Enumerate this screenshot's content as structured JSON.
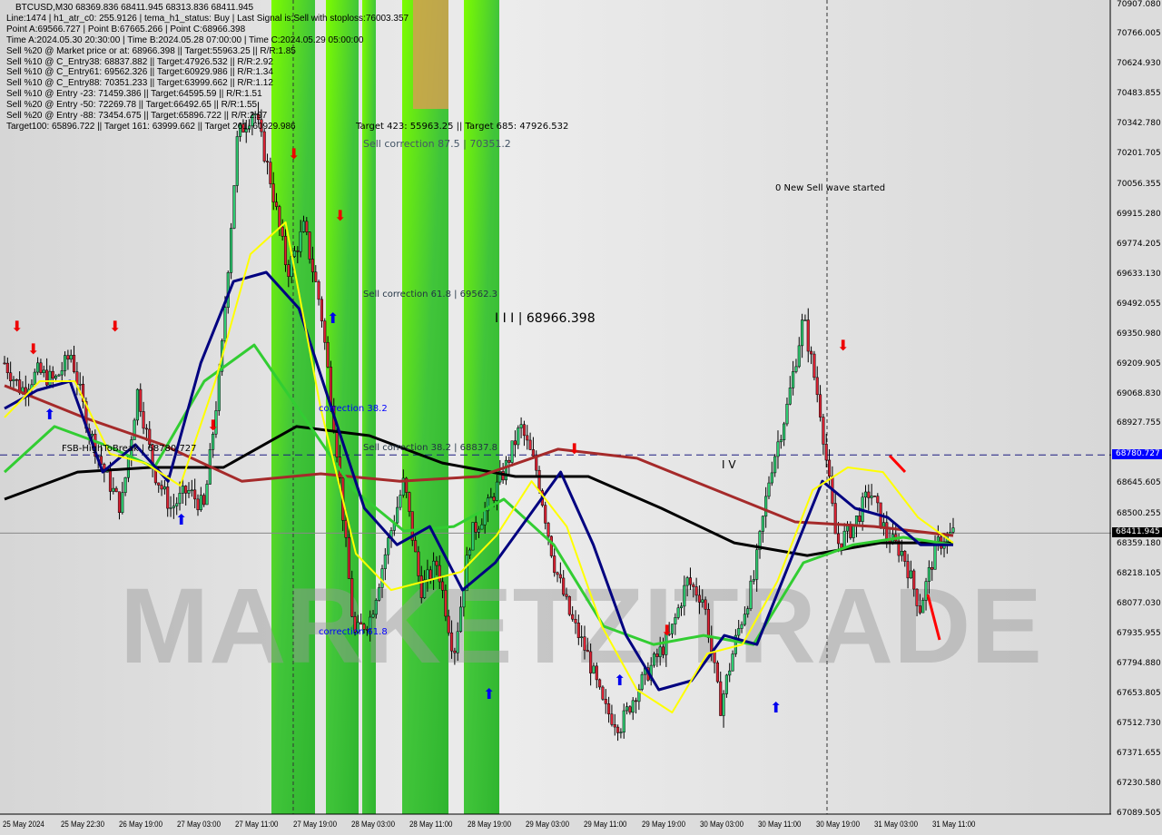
{
  "header": {
    "title": "BTCUSD,M30  68369.836 68411.945 68313.836 68411.945",
    "lines": [
      "Line:1474 | h1_atr_c0: 255.9126 | tema_h1_status: Buy | Last Signal is:Sell with stoploss:76003.357",
      "Point A:69566.727 | Point B:67665.266 | Point C:68966.398",
      "Time A:2024.05.30 20:30:00 | Time B:2024.05.28 07:00:00 | Time C:2024.05.29 05:00:00",
      "Sell %20 @ Market price or at: 68966.398 || Target:55963.25 || R/R:1.85",
      "Sell %10 @ C_Entry38: 68837.882 || Target:47926.532 || R/R:2.92",
      "Sell %10 @ C_Entry61: 69562.326 || Target:60929.986 || R/R:1.34",
      "Sell %10 @ C_Entry88: 70351.233 || Target:63999.662 || R/R:1.12",
      "Sell %10 @ Entry -23: 71459.386 || Target:64595.59 || R/R:1.51",
      "Sell %20 @ Entry -50: 72269.78 || Target:66492.65 || R/R:1.55",
      "Sell %20 @ Entry -88: 73454.675 || Target:65896.722 || R/R:2.97",
      "Target100: 65896.722 || Target 161: 63999.662 || Target 261: 60929.986"
    ]
  },
  "annotations": {
    "targets": "Target 423: 55963.25 || Target 685: 47926.532",
    "sell_corr_875": "Sell correction 87.5 | 70351.2",
    "sell_corr_618": "Sell correction 61.8 | 69562.3",
    "wave_iii": "I I I | 68966.398",
    "corr_382": "correction 38.2",
    "sell_corr_382": "Sell correction 38.2 | 68837.8",
    "fsb": "FSB-HighToBreak | 68780.727",
    "corr_618": "correction 61.8",
    "new_wave": "0 New Sell wave started",
    "wave_iv": "I V",
    "watermark": "MARKETZITRADE"
  },
  "price_tags": {
    "fsb_level": "68780.727",
    "current_price": "68411.945"
  },
  "colors": {
    "fsb_tag": "#0000ff",
    "current_tag": "#000000",
    "band_green": "#41c53a",
    "band_lime": "#7cfc00",
    "ma_black": "#000000",
    "ma_brown": "#a52a2a",
    "ma_green": "#32cd32",
    "ma_navy": "#000080",
    "ma_yellow": "#ffff00"
  },
  "chart_data": {
    "type": "candlestick",
    "symbol": "BTCUSD",
    "timeframe": "M30",
    "ylim": [
      67089.505,
      70907.08
    ],
    "grid": false,
    "y_ticks": [
      "70907.080",
      "70766.005",
      "70624.930",
      "70483.855",
      "70342.780",
      "70201.705",
      "70056.355",
      "69915.280",
      "69774.205",
      "69633.130",
      "69492.055",
      "69350.980",
      "69209.905",
      "69068.830",
      "68927.755",
      "68645.605",
      "68500.255",
      "68359.180",
      "68218.105",
      "68077.030",
      "67935.955",
      "67794.880",
      "67653.805",
      "67512.730",
      "67371.655",
      "67230.580",
      "67089.505"
    ],
    "x_ticks": [
      "25 May 2024",
      "25 May 22:30",
      "26 May 19:00",
      "27 May 03:00",
      "27 May 11:00",
      "27 May 19:00",
      "28 May 03:00",
      "28 May 11:00",
      "28 May 19:00",
      "29 May 03:00",
      "29 May 11:00",
      "29 May 19:00",
      "30 May 03:00",
      "30 May 11:00",
      "30 May 19:00",
      "31 May 03:00",
      "31 May 11:00"
    ],
    "horizontal_levels": [
      {
        "label": "FSB-HighToBreak",
        "value": 68780.727,
        "style": "dashed"
      },
      {
        "label": "current",
        "value": 68411.945,
        "style": "solid"
      }
    ],
    "close_path": [
      69215,
      69086,
      69172,
      69129,
      69257,
      68915,
      68700,
      68529,
      69086,
      68700,
      68529,
      68615,
      68529,
      69215,
      70286,
      70414,
      70072,
      69643,
      69857,
      69472,
      68786,
      67929,
      68015,
      68357,
      68657,
      68143,
      68272,
      67843,
      68400,
      68529,
      68700,
      68915,
      68700,
      68272,
      68015,
      67843,
      67586,
      67501,
      67672,
      67800,
      67929,
      68186,
      68100,
      67586,
      67929,
      68186,
      68700,
      69000,
      69429,
      69000,
      68357,
      68443,
      68615,
      68400,
      68315,
      68058,
      68357,
      68412
    ],
    "series": [
      {
        "color": "#000000",
        "values": [
          68572,
          68700,
          68722,
          68722,
          68915,
          68872,
          68743,
          68679,
          68679,
          68529,
          68366,
          68306,
          68366,
          68366
        ]
      },
      {
        "color": "#a52a2a",
        "values": [
          69108,
          68958,
          68829,
          68657,
          68692,
          68657,
          68679,
          68808,
          68765,
          68615,
          68465,
          68443,
          68400
        ]
      },
      {
        "color": "#32cd32",
        "values": [
          68700,
          68915,
          68829,
          68722,
          69129,
          69300,
          68958,
          68615,
          68422,
          68443,
          68572,
          68357,
          67972,
          67886,
          67929,
          67886,
          68272,
          68357,
          68392,
          68357
        ]
      },
      {
        "color": "#000080",
        "values": [
          69000,
          69086,
          69129,
          68700,
          68829,
          68657,
          69215,
          69600,
          69643,
          69472,
          69000,
          68529,
          68357,
          68443,
          68143,
          68272,
          68486,
          68700,
          68357,
          67929,
          67672,
          67715,
          67929,
          67886,
          68272,
          68657,
          68529,
          68486,
          68357,
          68357
        ]
      },
      {
        "color": "#ffff00",
        "values": [
          68958,
          69129,
          69129,
          68786,
          68743,
          68636,
          69129,
          69729,
          69879,
          69000,
          68315,
          68143,
          68186,
          68229,
          68400,
          68657,
          68443,
          67972,
          67672,
          67565,
          67843,
          67886,
          68186,
          68615,
          68722,
          68700,
          68486,
          68366
        ]
      }
    ]
  }
}
